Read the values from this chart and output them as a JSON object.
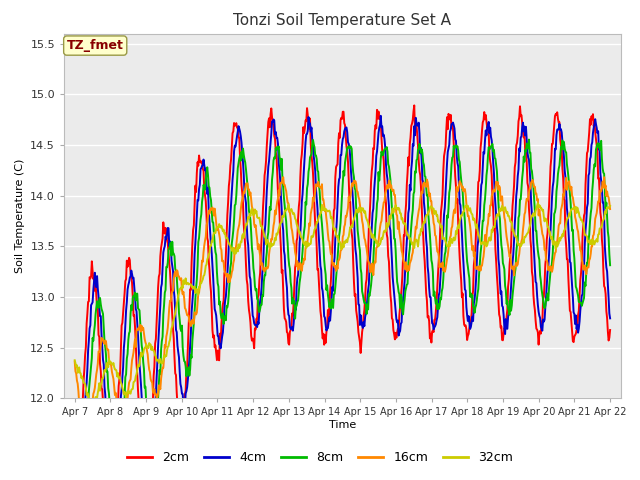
{
  "title": "Tonzi Soil Temperature Set A",
  "xlabel": "Time",
  "ylabel": "Soil Temperature (C)",
  "ylim": [
    12.0,
    15.6
  ],
  "series_colors": [
    "#ff0000",
    "#0000cc",
    "#00bb00",
    "#ff8800",
    "#cccc00"
  ],
  "series_labels": [
    "2cm",
    "4cm",
    "8cm",
    "16cm",
    "32cm"
  ],
  "annotation_text": "TZ_fmet",
  "annotation_bg": "#ffffcc",
  "annotation_border": "#999944",
  "annotation_text_color": "#880000",
  "x_tick_labels": [
    "Apr 7",
    "Apr 8",
    "Apr 9",
    "Apr 10",
    "Apr 11",
    "Apr 12",
    "Apr 13",
    "Apr 14",
    "Apr 15",
    "Apr 16",
    "Apr 17",
    "Apr 18",
    "Apr 19",
    "Apr 20",
    "Apr 21",
    "Apr 22"
  ],
  "yticks": [
    12.0,
    12.5,
    13.0,
    13.5,
    14.0,
    14.5,
    15.0,
    15.5
  ],
  "plot_bg": "#ebebeb",
  "fig_bg": "#ffffff"
}
